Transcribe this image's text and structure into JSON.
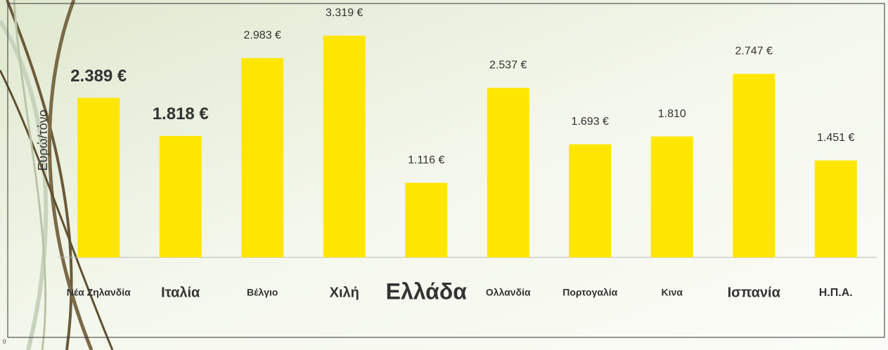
{
  "chart_data": {
    "type": "bar",
    "y_axis_label": "Ευρώ/τόνο",
    "corner_label": "0",
    "categories": [
      "Νέα Ζηλανδία",
      "Ιταλία",
      "Βέλγιο",
      "Χιλή",
      "Ελλάδα",
      "Ολλανδία",
      "Πορτογαλία",
      "Κινα",
      "Ισπανία",
      "Η.Π.Α."
    ],
    "values": [
      2389,
      1818,
      2983,
      3319,
      1116,
      2537,
      1693,
      1810,
      2747,
      1451
    ],
    "value_labels": [
      "2.389 €",
      "1.818 €",
      "2.983 €",
      "3.319 €",
      "1.116 €",
      "2.537 €",
      "1.693 €",
      "1.810",
      "2.747 €",
      "1.451 €"
    ],
    "color": "#ffe600",
    "ylim": [
      0,
      3800
    ]
  }
}
